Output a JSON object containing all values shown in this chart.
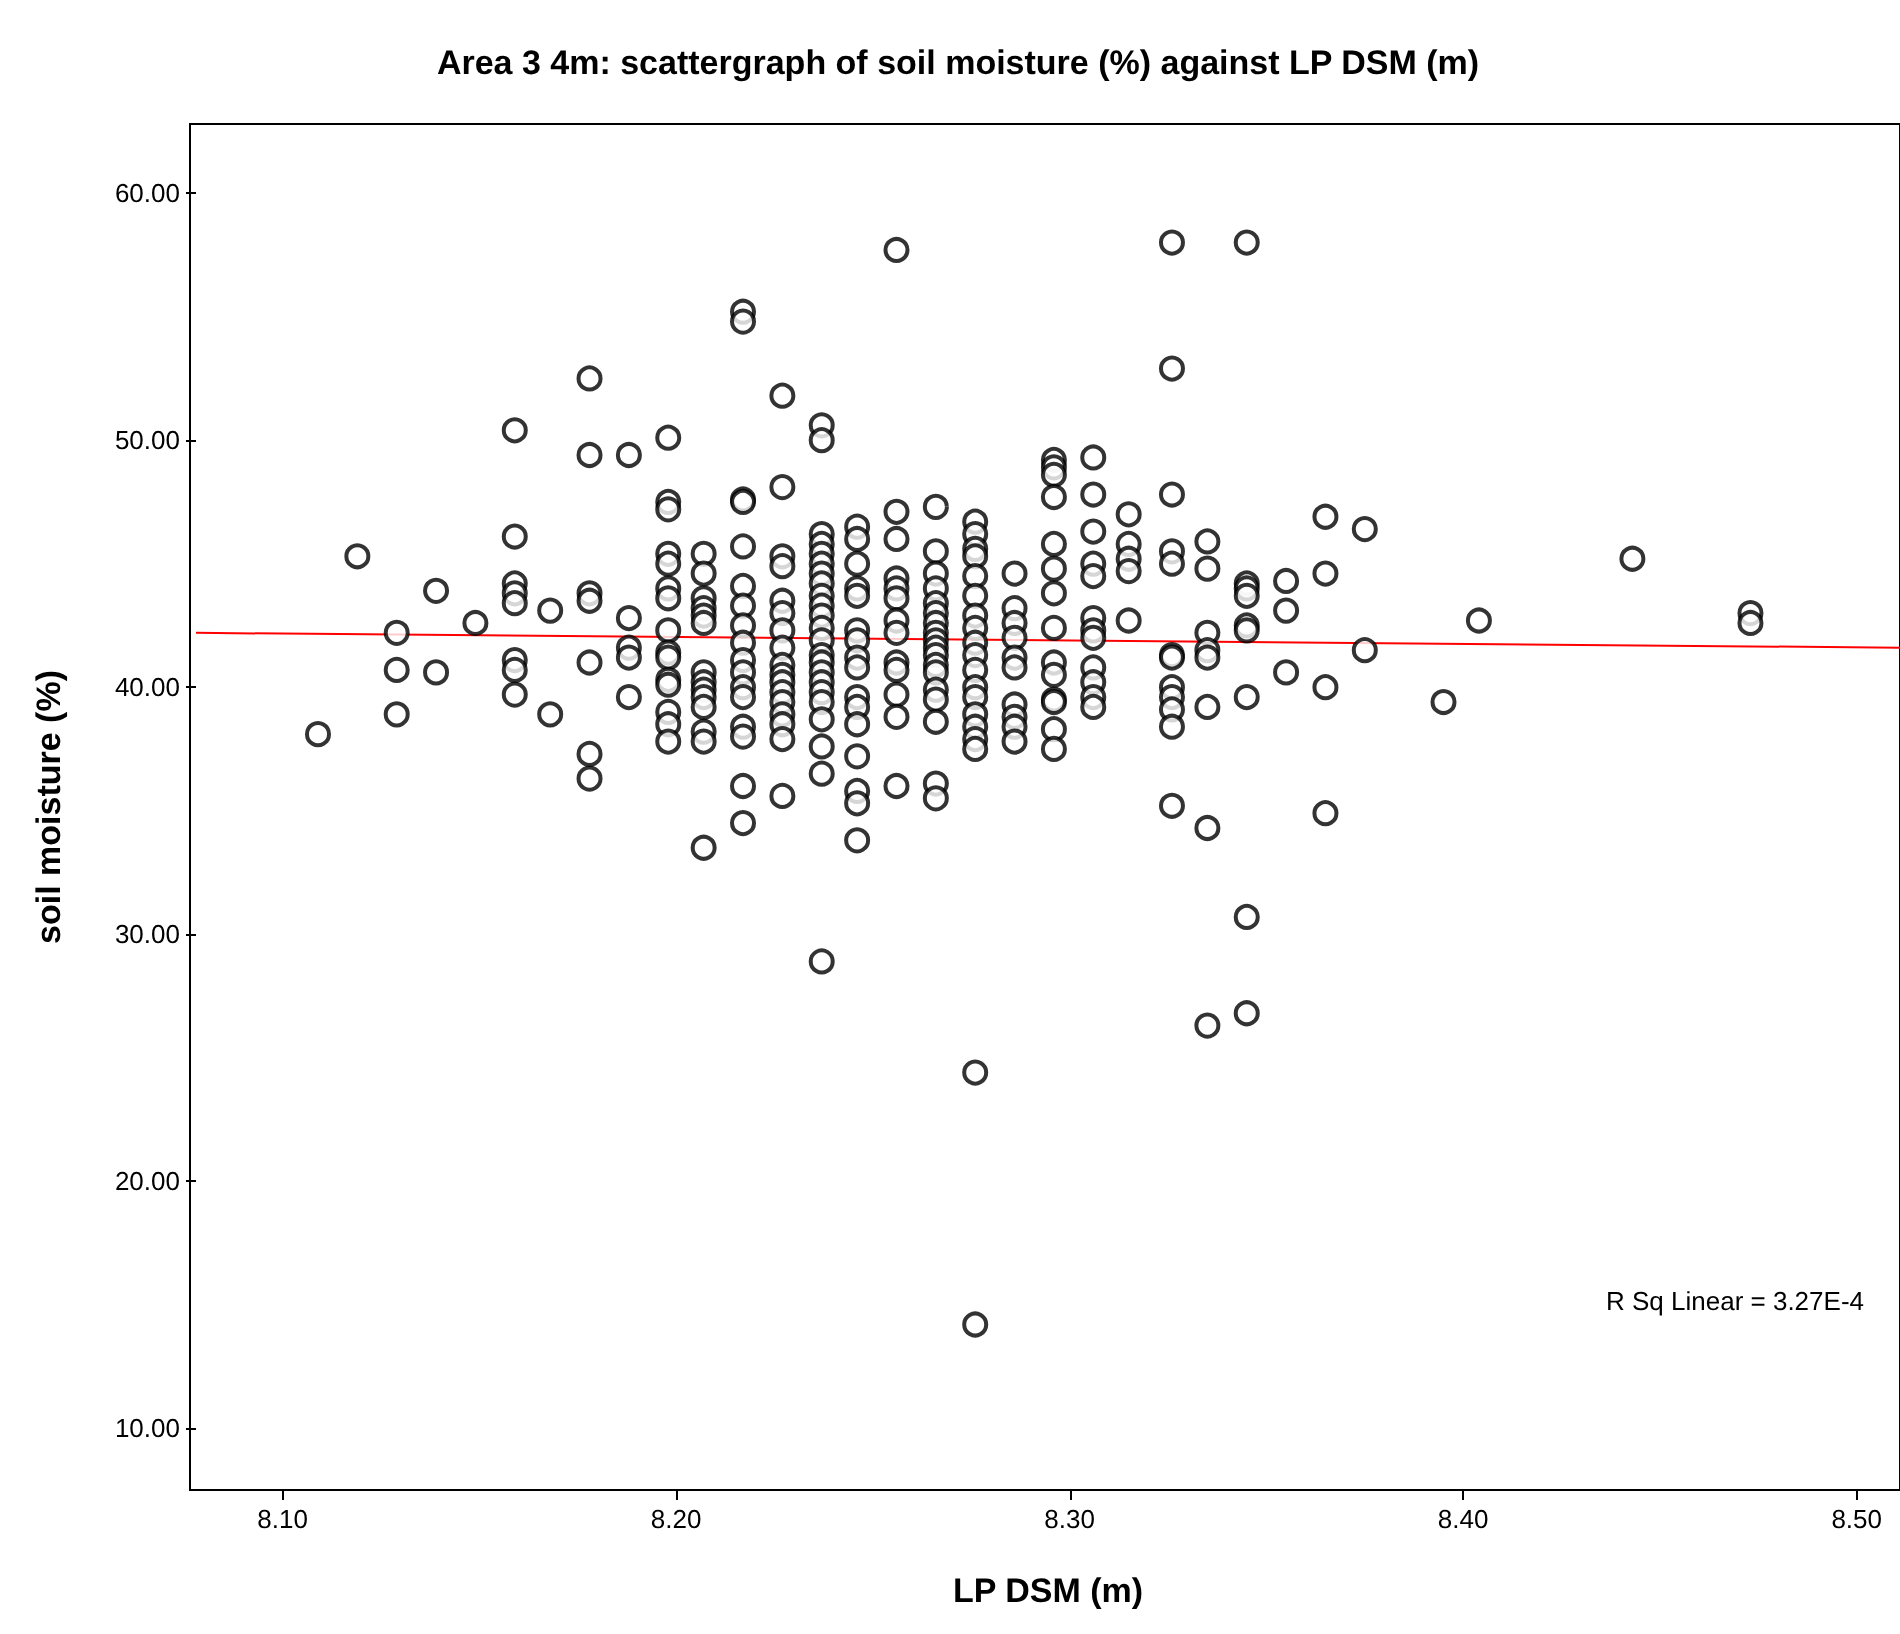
{
  "chart_data": {
    "type": "scatter",
    "title": "Area 3 4m: scattergraph of soil moisture (%) against LP DSM (m)",
    "xlabel": "LP DSM (m)",
    "ylabel": "soil moisture (%)",
    "xlim": [
      8.078,
      8.511
    ],
    "ylim": [
      7.5,
      62.8
    ],
    "xticks": [
      {
        "value": 8.1,
        "label": "8.10"
      },
      {
        "value": 8.2,
        "label": "8.20"
      },
      {
        "value": 8.3,
        "label": "8.30"
      },
      {
        "value": 8.4,
        "label": "8.40"
      },
      {
        "value": 8.5,
        "label": "8.50"
      }
    ],
    "yticks": [
      {
        "value": 10,
        "label": "10.00"
      },
      {
        "value": 20,
        "label": "20.00"
      },
      {
        "value": 30,
        "label": "30.00"
      },
      {
        "value": 40,
        "label": "40.00"
      },
      {
        "value": 50,
        "label": "50.00"
      },
      {
        "value": 60,
        "label": "60.00"
      }
    ],
    "grid": false,
    "marker": "circle",
    "annotations": [
      "R Sq Linear = 3.27E-4"
    ],
    "series": [
      {
        "type": "scatter",
        "color": "#000000",
        "x": [
          8.109,
          8.119,
          8.129,
          8.129,
          8.129,
          8.139,
          8.139,
          8.149,
          8.159,
          8.159,
          8.159,
          8.159,
          8.159,
          8.159,
          8.159,
          8.159,
          8.168,
          8.168,
          8.178,
          8.178,
          8.178,
          8.178,
          8.178,
          8.178,
          8.178,
          8.188,
          8.188,
          8.188,
          8.188,
          8.188,
          8.198,
          8.198,
          8.198,
          8.198,
          8.198,
          8.198,
          8.198,
          8.198,
          8.198,
          8.198,
          8.198,
          8.198,
          8.198,
          8.198,
          8.198,
          8.207,
          8.207,
          8.207,
          8.207,
          8.207,
          8.207,
          8.207,
          8.207,
          8.207,
          8.207,
          8.207,
          8.207,
          8.207,
          8.207,
          8.217,
          8.217,
          8.217,
          8.217,
          8.217,
          8.217,
          8.217,
          8.217,
          8.217,
          8.217,
          8.217,
          8.217,
          8.217,
          8.217,
          8.217,
          8.217,
          8.217,
          8.227,
          8.227,
          8.227,
          8.227,
          8.227,
          8.227,
          8.227,
          8.227,
          8.227,
          8.227,
          8.227,
          8.227,
          8.227,
          8.227,
          8.227,
          8.227,
          8.227,
          8.237,
          8.237,
          8.237,
          8.237,
          8.237,
          8.237,
          8.237,
          8.237,
          8.237,
          8.237,
          8.237,
          8.237,
          8.237,
          8.237,
          8.237,
          8.237,
          8.237,
          8.237,
          8.237,
          8.237,
          8.237,
          8.237,
          8.237,
          8.246,
          8.246,
          8.246,
          8.246,
          8.246,
          8.246,
          8.246,
          8.246,
          8.246,
          8.246,
          8.246,
          8.246,
          8.246,
          8.246,
          8.246,
          8.246,
          8.256,
          8.256,
          8.256,
          8.256,
          8.256,
          8.256,
          8.256,
          8.256,
          8.256,
          8.256,
          8.256,
          8.256,
          8.256,
          8.266,
          8.266,
          8.266,
          8.266,
          8.266,
          8.266,
          8.266,
          8.266,
          8.266,
          8.266,
          8.266,
          8.266,
          8.266,
          8.266,
          8.266,
          8.266,
          8.266,
          8.266,
          8.276,
          8.276,
          8.276,
          8.276,
          8.276,
          8.276,
          8.276,
          8.276,
          8.276,
          8.276,
          8.276,
          8.276,
          8.276,
          8.276,
          8.276,
          8.276,
          8.276,
          8.276,
          8.276,
          8.286,
          8.286,
          8.286,
          8.286,
          8.286,
          8.286,
          8.286,
          8.286,
          8.286,
          8.286,
          8.296,
          8.296,
          8.296,
          8.296,
          8.296,
          8.296,
          8.296,
          8.296,
          8.296,
          8.296,
          8.296,
          8.296,
          8.296,
          8.296,
          8.306,
          8.306,
          8.306,
          8.306,
          8.306,
          8.306,
          8.306,
          8.306,
          8.306,
          8.306,
          8.306,
          8.306,
          8.315,
          8.315,
          8.315,
          8.315,
          8.315,
          8.326,
          8.326,
          8.326,
          8.326,
          8.326,
          8.326,
          8.326,
          8.326,
          8.326,
          8.326,
          8.326,
          8.326,
          8.335,
          8.335,
          8.335,
          8.335,
          8.335,
          8.335,
          8.335,
          8.335,
          8.345,
          8.345,
          8.345,
          8.345,
          8.345,
          8.345,
          8.345,
          8.345,
          8.345,
          8.355,
          8.355,
          8.355,
          8.365,
          8.365,
          8.365,
          8.365,
          8.375,
          8.375,
          8.395,
          8.404,
          8.443,
          8.473,
          8.473
        ],
        "values": [
          38.1,
          45.3,
          42.2,
          40.7,
          38.9,
          43.9,
          40.6,
          42.6,
          50.4,
          46.1,
          44.2,
          43.8,
          43.4,
          41.1,
          40.7,
          39.7,
          43.1,
          38.9,
          52.5,
          49.4,
          43.8,
          43.5,
          41.0,
          37.3,
          36.3,
          49.4,
          42.8,
          41.6,
          41.2,
          39.6,
          50.1,
          47.5,
          47.2,
          45.4,
          45.0,
          44.0,
          43.6,
          42.3,
          41.4,
          41.2,
          40.3,
          40.1,
          39.0,
          38.5,
          37.8,
          45.4,
          44.6,
          43.6,
          43.2,
          42.9,
          42.6,
          40.6,
          40.2,
          39.9,
          39.6,
          39.2,
          38.2,
          37.8,
          33.5,
          55.2,
          54.8,
          47.6,
          47.5,
          45.7,
          44.1,
          43.3,
          42.5,
          41.8,
          41.1,
          40.6,
          40.0,
          39.6,
          38.4,
          38.0,
          36.0,
          34.5,
          51.8,
          48.1,
          45.3,
          44.9,
          43.5,
          43.0,
          42.3,
          41.6,
          40.9,
          40.5,
          40.2,
          39.8,
          39.4,
          38.9,
          38.5,
          37.9,
          35.6,
          50.6,
          50.0,
          46.2,
          45.8,
          45.4,
          45.0,
          44.6,
          44.2,
          43.7,
          43.3,
          42.9,
          42.4,
          41.9,
          41.3,
          41.0,
          40.6,
          40.2,
          39.8,
          39.4,
          38.7,
          37.6,
          36.5,
          28.9,
          46.5,
          46.0,
          45.0,
          44.0,
          43.7,
          42.3,
          41.9,
          41.2,
          40.8,
          39.6,
          39.2,
          38.5,
          37.2,
          35.8,
          35.3,
          33.8,
          57.7,
          47.1,
          46.0,
          44.4,
          44.0,
          43.6,
          42.7,
          42.2,
          41.0,
          40.7,
          39.7,
          38.8,
          36.0,
          47.3,
          45.5,
          44.6,
          44.0,
          43.4,
          43.0,
          42.6,
          42.2,
          41.9,
          41.6,
          41.3,
          40.9,
          40.6,
          39.9,
          39.5,
          38.6,
          36.1,
          35.5,
          46.7,
          46.2,
          45.6,
          45.3,
          44.5,
          43.7,
          42.9,
          42.4,
          41.8,
          41.3,
          40.7,
          40.0,
          39.6,
          38.9,
          38.4,
          37.9,
          37.5,
          24.4,
          14.2,
          44.6,
          43.2,
          42.6,
          42.0,
          41.2,
          40.8,
          39.3,
          38.8,
          38.4,
          37.8,
          49.2,
          48.9,
          48.6,
          47.7,
          45.8,
          44.8,
          43.8,
          42.4,
          41.0,
          40.5,
          39.5,
          39.4,
          38.3,
          37.5,
          49.3,
          47.8,
          46.3,
          45.0,
          44.5,
          42.8,
          42.3,
          42.0,
          40.8,
          40.2,
          39.6,
          39.2,
          47.0,
          45.8,
          45.2,
          44.7,
          42.7,
          58.0,
          52.9,
          47.8,
          45.5,
          45.0,
          41.3,
          41.2,
          40.0,
          39.6,
          39.1,
          38.4,
          35.2,
          45.9,
          44.8,
          42.2,
          41.5,
          41.2,
          39.2,
          34.3,
          26.3,
          58.0,
          44.2,
          44.0,
          43.7,
          42.5,
          42.3,
          39.6,
          30.7,
          26.8,
          44.3,
          43.1,
          40.6,
          46.9,
          44.6,
          40.0,
          34.9,
          46.4,
          41.5,
          39.4,
          42.7,
          45.2,
          43.0,
          42.6
        ]
      },
      {
        "type": "line",
        "color": "#ff0000",
        "marker": "none",
        "x": [
          8.078,
          8.511
        ],
        "values": [
          42.2,
          41.6
        ]
      }
    ]
  }
}
